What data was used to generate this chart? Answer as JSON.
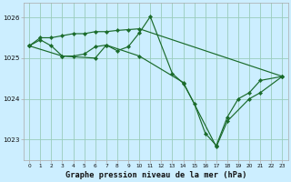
{
  "background_color": "#cceeff",
  "grid_color": "#99ccbb",
  "line_color": "#1a6b2a",
  "title": "Graphe pression niveau de la mer (hPa)",
  "xlim": [
    -0.5,
    23.5
  ],
  "ylim": [
    1022.5,
    1026.35
  ],
  "yticks": [
    1023,
    1024,
    1025,
    1026
  ],
  "xtick_labels": [
    "0",
    "1",
    "2",
    "3",
    "4",
    "5",
    "6",
    "7",
    "8",
    "9",
    "10",
    "11",
    "12",
    "13",
    "14",
    "15",
    "16",
    "17",
    "18",
    "19",
    "20",
    "21",
    "22",
    "23"
  ],
  "series": [
    {
      "x": [
        0,
        1,
        2,
        3,
        4,
        5,
        6,
        7,
        8,
        9,
        10,
        23
      ],
      "y": [
        1025.3,
        1025.5,
        1025.5,
        1025.55,
        1025.6,
        1025.6,
        1025.65,
        1025.65,
        1025.68,
        1025.7,
        1025.72,
        1024.55
      ]
    },
    {
      "x": [
        0,
        1,
        2,
        3,
        4,
        5,
        6,
        7,
        8,
        9,
        10,
        11,
        13,
        14,
        15,
        16,
        17,
        18,
        19,
        20,
        21,
        23
      ],
      "y": [
        1025.3,
        1025.45,
        1025.3,
        1025.05,
        1025.05,
        1025.1,
        1025.28,
        1025.32,
        1025.18,
        1025.28,
        1025.62,
        1026.02,
        1024.62,
        1024.38,
        1023.88,
        1023.15,
        1022.85,
        1023.55,
        1024.0,
        1024.15,
        1024.45,
        1024.55
      ]
    },
    {
      "x": [
        0,
        3,
        6,
        7,
        10,
        14,
        17,
        18,
        20,
        21,
        23
      ],
      "y": [
        1025.3,
        1025.05,
        1025.0,
        1025.32,
        1025.05,
        1024.4,
        1022.82,
        1023.45,
        1024.0,
        1024.15,
        1024.55
      ]
    }
  ]
}
